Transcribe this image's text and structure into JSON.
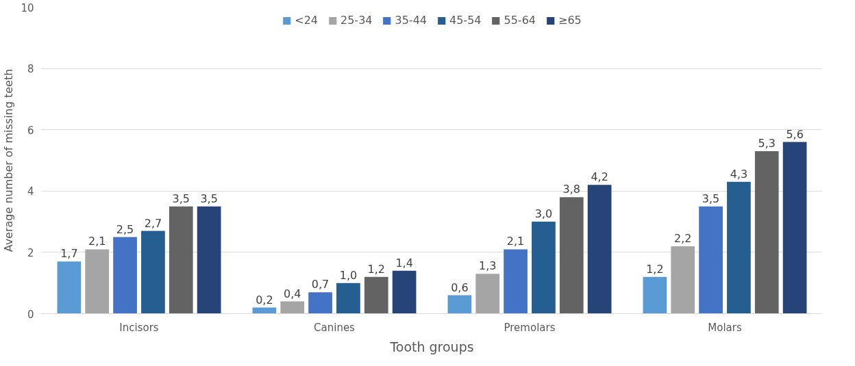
{
  "chart_data": {
    "type": "bar",
    "xlabel": "Tooth groups",
    "ylabel": "Average number of missing teeth",
    "categories": [
      "Incisors",
      "Canines",
      "Premolars",
      "Molars"
    ],
    "series": [
      {
        "name": "<24",
        "color": "#5b9bd5",
        "values": [
          1.7,
          0.2,
          0.6,
          1.2
        ],
        "value_labels": [
          "1,7",
          "0,2",
          "0,6",
          "1,2"
        ]
      },
      {
        "name": "25-34",
        "color": "#a5a5a5",
        "values": [
          2.1,
          0.4,
          1.3,
          2.2
        ],
        "value_labels": [
          "2,1",
          "0,4",
          "1,3",
          "2,2"
        ]
      },
      {
        "name": "35-44",
        "color": "#4472c4",
        "values": [
          2.5,
          0.7,
          2.1,
          3.5
        ],
        "value_labels": [
          "2,5",
          "0,7",
          "2,1",
          "3,5"
        ]
      },
      {
        "name": "45-54",
        "color": "#255e91",
        "values": [
          2.7,
          1.0,
          3.0,
          4.3
        ],
        "value_labels": [
          "2,7",
          "1,0",
          "3,0",
          "4,3"
        ]
      },
      {
        "name": "55-64",
        "color": "#636363",
        "values": [
          3.5,
          1.2,
          3.8,
          5.3
        ],
        "value_labels": [
          "3,5",
          "1,2",
          "3,8",
          "5,3"
        ]
      },
      {
        "name": "≥65",
        "color": "#264478",
        "values": [
          3.5,
          1.4,
          4.2,
          5.6
        ],
        "value_labels": [
          "3,5",
          "1,4",
          "4,2",
          "5,6"
        ]
      }
    ],
    "ylim": [
      0,
      10
    ],
    "yticks": [
      0,
      2,
      4,
      6,
      8,
      10
    ],
    "grid": "y",
    "legend": "top"
  }
}
